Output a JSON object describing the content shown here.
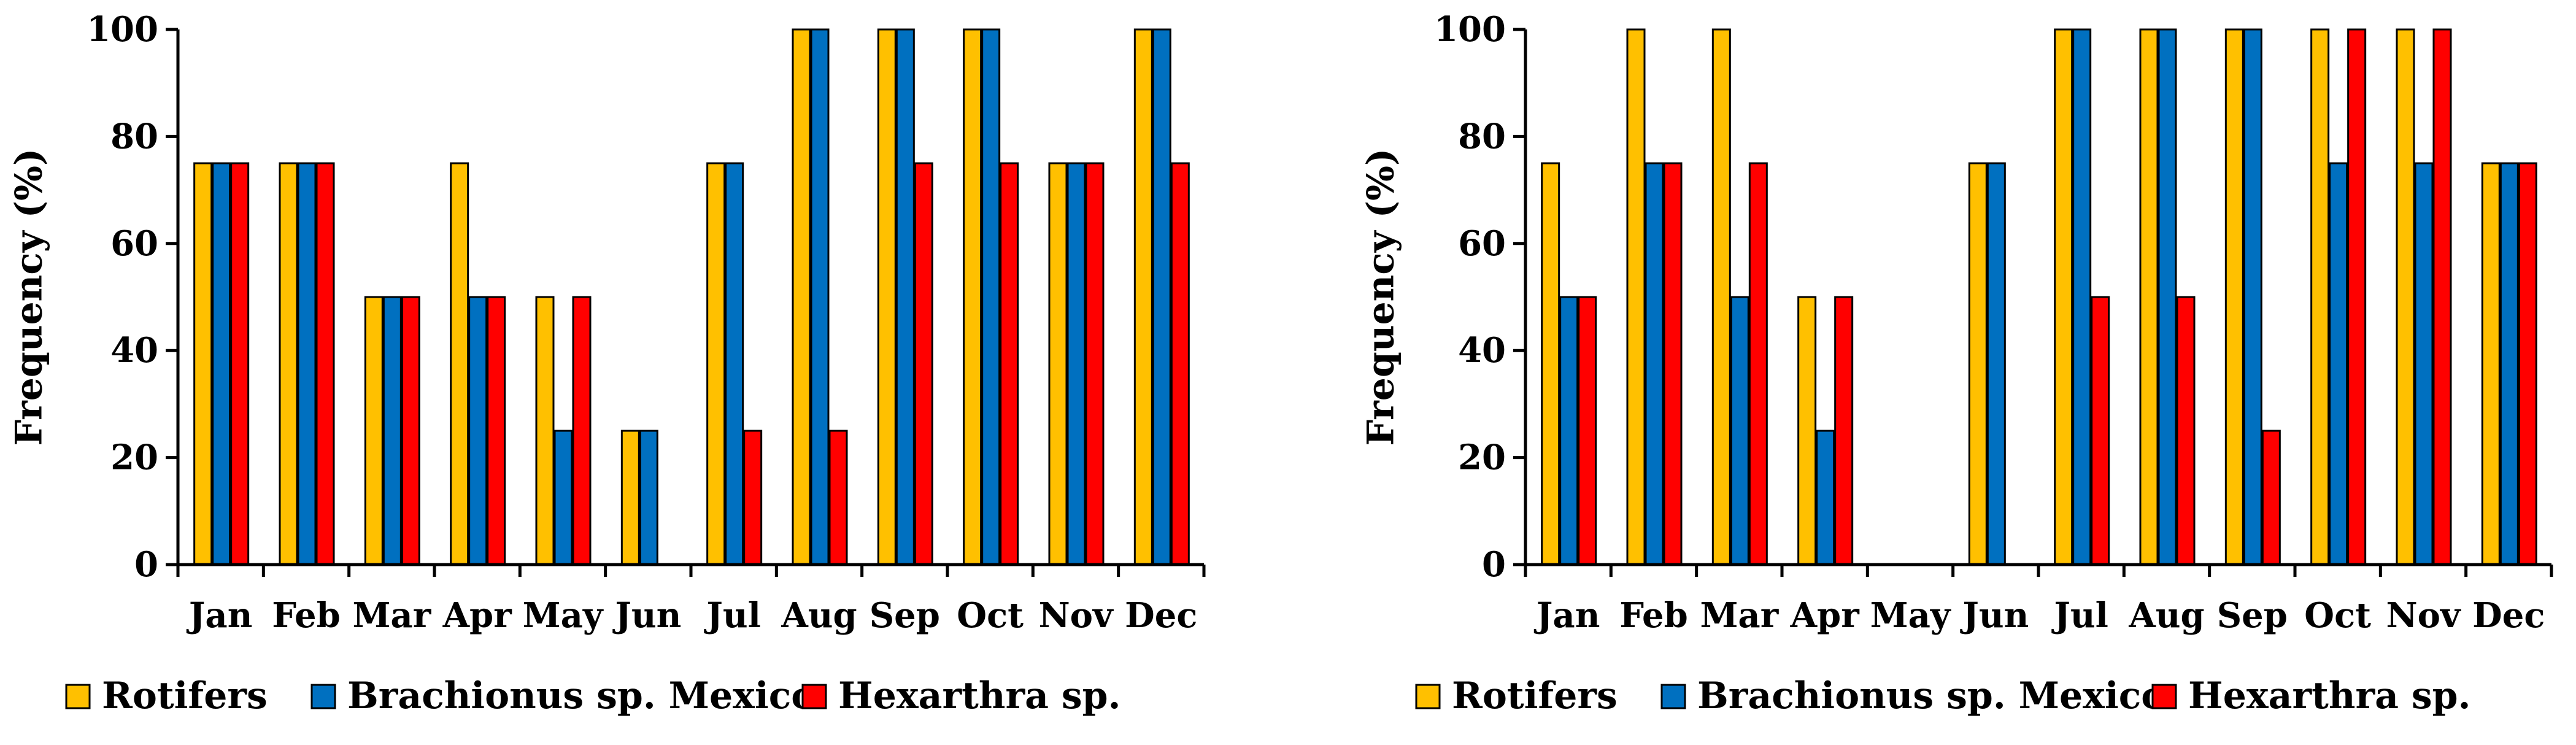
{
  "colors": {
    "Rotifers": "#FFC000",
    "Brachionus sp. Mexico": "#0070C0",
    "Hexarthra sp.": "#FF0000"
  },
  "chart_data": [
    {
      "type": "bar",
      "title": "",
      "xlabel": "",
      "ylabel": "Frequency (%)",
      "ylim": [
        0,
        100
      ],
      "yticks": [
        "0",
        "20",
        "40",
        "60",
        "80",
        "100"
      ],
      "legend_position": "bottom",
      "categories": [
        "Jan",
        "Feb",
        "Mar",
        "Apr",
        "May",
        "Jun",
        "Jul",
        "Aug",
        "Sep",
        "Oct",
        "Nov",
        "Dec"
      ],
      "series": [
        {
          "name": "Rotifers",
          "values": [
            75,
            75,
            50,
            75,
            50,
            25,
            75,
            100,
            100,
            100,
            75,
            100
          ]
        },
        {
          "name": "Brachionus sp. Mexico",
          "values": [
            75,
            75,
            50,
            50,
            25,
            25,
            75,
            100,
            100,
            100,
            75,
            100
          ]
        },
        {
          "name": "Hexarthra sp.",
          "values": [
            75,
            75,
            50,
            50,
            50,
            0,
            25,
            25,
            75,
            75,
            75,
            75
          ]
        }
      ]
    },
    {
      "type": "bar",
      "title": "",
      "xlabel": "",
      "ylabel": "Frequency (%)",
      "ylim": [
        0,
        100
      ],
      "yticks": [
        "0",
        "20",
        "40",
        "60",
        "80",
        "100"
      ],
      "legend_position": "bottom",
      "categories": [
        "Jan",
        "Feb",
        "Mar",
        "Apr",
        "May",
        "Jun",
        "Jul",
        "Aug",
        "Sep",
        "Oct",
        "Nov",
        "Dec"
      ],
      "series": [
        {
          "name": "Rotifers",
          "values": [
            75,
            100,
            100,
            50,
            0,
            75,
            100,
            100,
            100,
            100,
            100,
            75
          ]
        },
        {
          "name": "Brachionus sp. Mexico",
          "values": [
            50,
            75,
            50,
            25,
            0,
            75,
            100,
            100,
            100,
            75,
            75,
            75
          ]
        },
        {
          "name": "Hexarthra sp.",
          "values": [
            50,
            75,
            75,
            50,
            0,
            0,
            50,
            50,
            25,
            100,
            100,
            75
          ]
        }
      ]
    }
  ]
}
